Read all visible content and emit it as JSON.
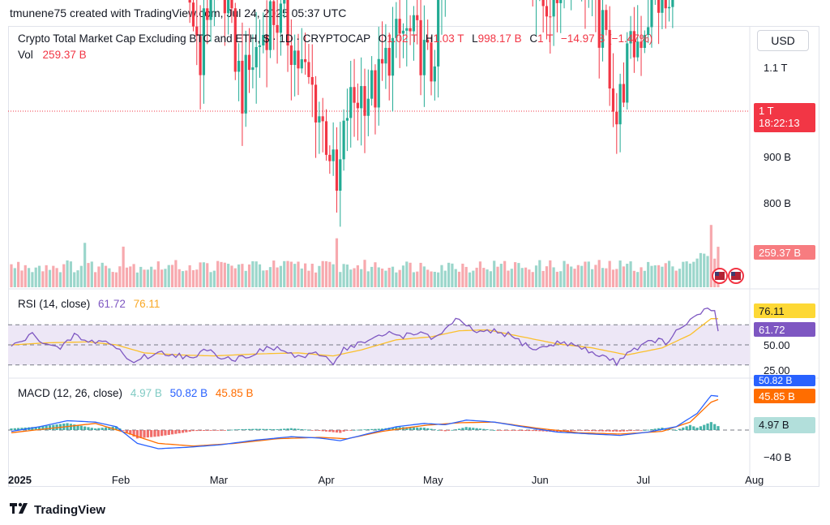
{
  "header": {
    "text": "tmunene75 created with TradingView.com, Jul 24, 2025 05:37 UTC"
  },
  "legend": {
    "title": "Crypto Total Market Cap Excluding BTC and ETH, $ · 1D · CRYPTOCAP",
    "o_label": "O",
    "o_value": "1.02 T",
    "h_label": "H",
    "h_value": "1.03 T",
    "l_label": "L",
    "l_value": "998.17 B",
    "c_label": "C",
    "c_value": "1 T",
    "change": "−14.97 B (−1.47%)",
    "vol_label": "Vol",
    "vol_value": "259.37 B"
  },
  "currency_button": "USD",
  "price_tag": {
    "price": "1 T",
    "countdown": "18:22:13"
  },
  "vol_tag": "259.37 B",
  "rsi": {
    "label": "RSI (14, close)",
    "value": "61.72",
    "ma_value": "76.11"
  },
  "macd": {
    "label": "MACD (12, 26, close)",
    "hist": "4.97 B",
    "macd": "50.82 B",
    "signal": "45.85 B"
  },
  "footer": {
    "brand": "TradingView"
  },
  "colors": {
    "up": "#22ab94",
    "down": "#f23645",
    "rsi_line": "#7e57c2",
    "rsi_ma": "#fbc02d",
    "macd_line": "#2962ff",
    "signal_line": "#ff6d00"
  },
  "chart_data": {
    "type": "candlestick",
    "title": "Crypto Total Market Cap Excluding BTC and ETH, $ · 1D · CRYPTOCAP",
    "x_ticks": [
      "2025",
      "Feb",
      "Mar",
      "Apr",
      "May",
      "Jun",
      "Jul",
      "Aug"
    ],
    "price_axis": {
      "ticks": [
        "1.1 T",
        "900 B",
        "800 B"
      ],
      "values": [
        1100,
        900,
        800
      ],
      "unit": "B"
    },
    "rsi_axis": {
      "ticks": [
        "50.00",
        "25.00"
      ],
      "values": [
        50,
        25
      ],
      "bands": [
        70,
        30
      ]
    },
    "macd_axis": {
      "ticks": [
        "−40 B"
      ],
      "values": [
        -40
      ]
    },
    "close_anchors": [
      {
        "d": 0,
        "v": 965
      },
      {
        "d": 4,
        "v": 975
      },
      {
        "d": 8,
        "v": 1030
      },
      {
        "d": 12,
        "v": 1005
      },
      {
        "d": 15,
        "v": 985
      },
      {
        "d": 18,
        "v": 1045
      },
      {
        "d": 21,
        "v": 1090
      },
      {
        "d": 24,
        "v": 1060
      },
      {
        "d": 27,
        "v": 1045
      },
      {
        "d": 31,
        "v": 985
      },
      {
        "d": 32,
        "v": 930
      },
      {
        "d": 35,
        "v": 890
      },
      {
        "d": 40,
        "v": 925
      },
      {
        "d": 43,
        "v": 905
      },
      {
        "d": 47,
        "v": 885
      },
      {
        "d": 50,
        "v": 855
      },
      {
        "d": 54,
        "v": 820
      },
      {
        "d": 58,
        "v": 865
      },
      {
        "d": 62,
        "v": 840
      },
      {
        "d": 66,
        "v": 800
      },
      {
        "d": 70,
        "v": 820
      },
      {
        "d": 74,
        "v": 840
      },
      {
        "d": 78,
        "v": 835
      },
      {
        "d": 82,
        "v": 815
      },
      {
        "d": 86,
        "v": 800
      },
      {
        "d": 91,
        "v": 770
      },
      {
        "d": 93,
        "v": 745
      },
      {
        "d": 96,
        "v": 790
      },
      {
        "d": 100,
        "v": 800
      },
      {
        "d": 104,
        "v": 800
      },
      {
        "d": 108,
        "v": 820
      },
      {
        "d": 112,
        "v": 830
      },
      {
        "d": 116,
        "v": 825
      },
      {
        "d": 120,
        "v": 810
      },
      {
        "d": 124,
        "v": 860
      },
      {
        "d": 127,
        "v": 930
      },
      {
        "d": 130,
        "v": 915
      },
      {
        "d": 134,
        "v": 895
      },
      {
        "d": 138,
        "v": 900
      },
      {
        "d": 141,
        "v": 910
      },
      {
        "d": 145,
        "v": 895
      },
      {
        "d": 149,
        "v": 860
      },
      {
        "d": 152,
        "v": 845
      },
      {
        "d": 156,
        "v": 850
      },
      {
        "d": 160,
        "v": 880
      },
      {
        "d": 163,
        "v": 865
      },
      {
        "d": 166,
        "v": 840
      },
      {
        "d": 170,
        "v": 825
      },
      {
        "d": 173,
        "v": 785
      },
      {
        "d": 176,
        "v": 815
      },
      {
        "d": 180,
        "v": 830
      },
      {
        "d": 184,
        "v": 850
      },
      {
        "d": 188,
        "v": 840
      },
      {
        "d": 191,
        "v": 895
      },
      {
        "d": 193,
        "v": 950
      },
      {
        "d": 195,
        "v": 1000
      },
      {
        "d": 197,
        "v": 1050
      },
      {
        "d": 199,
        "v": 1090
      },
      {
        "d": 201,
        "v": 1070
      },
      {
        "d": 202,
        "v": 1000
      }
    ],
    "rsi_anchors": [
      {
        "d": 0,
        "v": 48
      },
      {
        "d": 6,
        "v": 60
      },
      {
        "d": 10,
        "v": 52
      },
      {
        "d": 14,
        "v": 45
      },
      {
        "d": 18,
        "v": 60
      },
      {
        "d": 22,
        "v": 52
      },
      {
        "d": 26,
        "v": 55
      },
      {
        "d": 31,
        "v": 45
      },
      {
        "d": 34,
        "v": 33
      },
      {
        "d": 38,
        "v": 38
      },
      {
        "d": 43,
        "v": 42
      },
      {
        "d": 48,
        "v": 40
      },
      {
        "d": 52,
        "v": 35
      },
      {
        "d": 56,
        "v": 47
      },
      {
        "d": 60,
        "v": 38
      },
      {
        "d": 64,
        "v": 36
      },
      {
        "d": 68,
        "v": 40
      },
      {
        "d": 72,
        "v": 45
      },
      {
        "d": 76,
        "v": 47
      },
      {
        "d": 80,
        "v": 40
      },
      {
        "d": 84,
        "v": 38
      },
      {
        "d": 88,
        "v": 41
      },
      {
        "d": 92,
        "v": 33
      },
      {
        "d": 95,
        "v": 46
      },
      {
        "d": 100,
        "v": 52
      },
      {
        "d": 104,
        "v": 56
      },
      {
        "d": 108,
        "v": 62
      },
      {
        "d": 112,
        "v": 59
      },
      {
        "d": 116,
        "v": 63
      },
      {
        "d": 120,
        "v": 56
      },
      {
        "d": 124,
        "v": 65
      },
      {
        "d": 127,
        "v": 75
      },
      {
        "d": 130,
        "v": 68
      },
      {
        "d": 134,
        "v": 62
      },
      {
        "d": 138,
        "v": 63
      },
      {
        "d": 142,
        "v": 60
      },
      {
        "d": 146,
        "v": 52
      },
      {
        "d": 150,
        "v": 45
      },
      {
        "d": 154,
        "v": 50
      },
      {
        "d": 158,
        "v": 53
      },
      {
        "d": 162,
        "v": 48
      },
      {
        "d": 166,
        "v": 42
      },
      {
        "d": 170,
        "v": 38
      },
      {
        "d": 173,
        "v": 32
      },
      {
        "d": 176,
        "v": 43
      },
      {
        "d": 180,
        "v": 49
      },
      {
        "d": 184,
        "v": 55
      },
      {
        "d": 188,
        "v": 52
      },
      {
        "d": 191,
        "v": 67
      },
      {
        "d": 194,
        "v": 74
      },
      {
        "d": 197,
        "v": 80
      },
      {
        "d": 199,
        "v": 86
      },
      {
        "d": 201,
        "v": 84
      },
      {
        "d": 202,
        "v": 61.72
      }
    ],
    "rsi_ma_anchors": [
      {
        "d": 0,
        "v": 50
      },
      {
        "d": 10,
        "v": 52
      },
      {
        "d": 22,
        "v": 53
      },
      {
        "d": 30,
        "v": 50
      },
      {
        "d": 38,
        "v": 42
      },
      {
        "d": 48,
        "v": 40
      },
      {
        "d": 58,
        "v": 39
      },
      {
        "d": 70,
        "v": 41
      },
      {
        "d": 82,
        "v": 42
      },
      {
        "d": 92,
        "v": 39
      },
      {
        "d": 100,
        "v": 45
      },
      {
        "d": 110,
        "v": 55
      },
      {
        "d": 120,
        "v": 58
      },
      {
        "d": 128,
        "v": 64
      },
      {
        "d": 136,
        "v": 65
      },
      {
        "d": 146,
        "v": 58
      },
      {
        "d": 156,
        "v": 51
      },
      {
        "d": 166,
        "v": 47
      },
      {
        "d": 176,
        "v": 40
      },
      {
        "d": 186,
        "v": 47
      },
      {
        "d": 194,
        "v": 60
      },
      {
        "d": 200,
        "v": 76.11
      },
      {
        "d": 202,
        "v": 76
      }
    ],
    "macd_anchors": [
      {
        "d": 0,
        "v": -2
      },
      {
        "d": 8,
        "v": 5
      },
      {
        "d": 16,
        "v": 14
      },
      {
        "d": 24,
        "v": 12
      },
      {
        "d": 30,
        "v": 5
      },
      {
        "d": 36,
        "v": -20
      },
      {
        "d": 42,
        "v": -28
      },
      {
        "d": 50,
        "v": -26
      },
      {
        "d": 60,
        "v": -22
      },
      {
        "d": 70,
        "v": -15
      },
      {
        "d": 80,
        "v": -10
      },
      {
        "d": 88,
        "v": -12
      },
      {
        "d": 94,
        "v": -16
      },
      {
        "d": 100,
        "v": -8
      },
      {
        "d": 110,
        "v": 5
      },
      {
        "d": 118,
        "v": 10
      },
      {
        "d": 124,
        "v": 8
      },
      {
        "d": 130,
        "v": 15
      },
      {
        "d": 138,
        "v": 12
      },
      {
        "d": 146,
        "v": 5
      },
      {
        "d": 156,
        "v": -3
      },
      {
        "d": 166,
        "v": -6
      },
      {
        "d": 174,
        "v": -8
      },
      {
        "d": 182,
        "v": -3
      },
      {
        "d": 190,
        "v": 5
      },
      {
        "d": 196,
        "v": 25
      },
      {
        "d": 200,
        "v": 52
      },
      {
        "d": 202,
        "v": 50.82
      }
    ],
    "signal_anchors": [
      {
        "d": 0,
        "v": -4
      },
      {
        "d": 12,
        "v": 3
      },
      {
        "d": 24,
        "v": 10
      },
      {
        "d": 34,
        "v": -6
      },
      {
        "d": 42,
        "v": -20
      },
      {
        "d": 52,
        "v": -24
      },
      {
        "d": 64,
        "v": -20
      },
      {
        "d": 76,
        "v": -13
      },
      {
        "d": 88,
        "v": -11
      },
      {
        "d": 96,
        "v": -13
      },
      {
        "d": 106,
        "v": -2
      },
      {
        "d": 118,
        "v": 7
      },
      {
        "d": 128,
        "v": 11
      },
      {
        "d": 138,
        "v": 12
      },
      {
        "d": 150,
        "v": 3
      },
      {
        "d": 162,
        "v": -4
      },
      {
        "d": 174,
        "v": -6
      },
      {
        "d": 186,
        "v": -2
      },
      {
        "d": 194,
        "v": 12
      },
      {
        "d": 200,
        "v": 42
      },
      {
        "d": 202,
        "v": 45.85
      }
    ],
    "volume_peak_days": [
      21,
      32,
      93,
      200
    ],
    "last_values": {
      "close": "1 T",
      "volume": "259.37 B",
      "rsi": "61.72",
      "rsi_ma": "76.11",
      "macd": "50.82 B",
      "signal": "45.85 B",
      "histogram": "4.97 B"
    }
  }
}
